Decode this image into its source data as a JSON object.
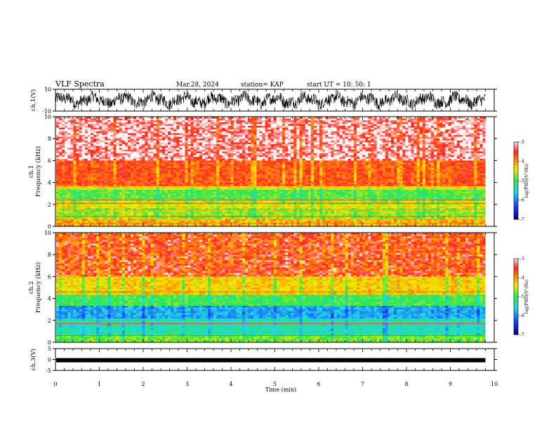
{
  "header": {
    "title": "VLF Spectra",
    "date": "Mar.28, 2024",
    "station": "station= KAP",
    "start_ut": "start  UT =   10: 50: 1"
  },
  "colors": {
    "background": "#ffffff",
    "axes": "#000000",
    "waveform": "#000000",
    "colorbar_stops": [
      "#ffffff",
      "#ff2a1e",
      "#ffe600",
      "#2ee84a",
      "#1fd9e6",
      "#1e40ff",
      "#000080"
    ]
  },
  "chart_data": [
    {
      "type": "line",
      "name": "ch1-waveform",
      "ylabel": "ch.1(V)",
      "ylim": [
        -10,
        10
      ],
      "y_ticks": [
        "10",
        "-10"
      ],
      "x_range_min": [
        0,
        9.8
      ],
      "description_values": "dense noise oscillating roughly between -8 and 8 V"
    },
    {
      "type": "heatmap",
      "name": "ch1-spectrogram",
      "ylabel_line1": "ch.1",
      "ylabel_line2": "Frequency (kHz)",
      "ylim": [
        0,
        10
      ],
      "y_ticks": [
        "0",
        "2",
        "4",
        "6",
        "8",
        "10"
      ],
      "x_range_min": [
        0,
        9.8
      ],
      "bands": [
        {
          "from": 0.0,
          "to": 0.6,
          "level": -4.1
        },
        {
          "from": 0.6,
          "to": 1.6,
          "level": -4.7
        },
        {
          "from": 1.6,
          "to": 2.0,
          "level": -4.4
        },
        {
          "from": 2.0,
          "to": 2.4,
          "level": -4.6
        },
        {
          "from": 2.4,
          "to": 3.3,
          "level": -4.9
        },
        {
          "from": 3.3,
          "to": 3.6,
          "level": -4.4
        },
        {
          "from": 3.6,
          "to": 6.0,
          "level": -3.7
        },
        {
          "from": 6.0,
          "to": 10.0,
          "level": -3.3
        }
      ],
      "colorbar": {
        "label": "log(PSD)(V²/Hz)",
        "ticks": [
          "-3",
          "-4",
          "-5",
          "-6",
          "-7"
        ],
        "range": [
          -7,
          -3
        ]
      }
    },
    {
      "type": "heatmap",
      "name": "ch2-spectrogram",
      "ylabel_line1": "ch.2",
      "ylabel_line2": "Frequency (kHz)",
      "ylim": [
        0,
        10
      ],
      "y_ticks": [
        "0",
        "2",
        "4",
        "6",
        "8",
        "10"
      ],
      "x_range_min": [
        0,
        9.8
      ],
      "bands": [
        {
          "from": 0.0,
          "to": 0.6,
          "level": -4.8
        },
        {
          "from": 0.6,
          "to": 2.2,
          "level": -5.4
        },
        {
          "from": 2.2,
          "to": 3.4,
          "level": -5.8
        },
        {
          "from": 3.4,
          "to": 4.4,
          "level": -5.0
        },
        {
          "from": 4.4,
          "to": 6.0,
          "level": -4.3
        },
        {
          "from": 6.0,
          "to": 10.0,
          "level": -3.8
        }
      ],
      "colorbar": {
        "label": "log(PSD)(V²/Hz)",
        "ticks": [
          "-3",
          "-4",
          "-5",
          "-6",
          "-7"
        ],
        "range": [
          -7,
          -3
        ]
      }
    },
    {
      "type": "line",
      "name": "ch3-waveform",
      "ylabel": "ch.3(V)",
      "ylim": [
        -5,
        5
      ],
      "y_ticks": [
        "5",
        "0",
        "-5"
      ],
      "x_range_min": [
        0,
        9.8
      ],
      "level_v": -0.3
    }
  ],
  "x_axis": {
    "label": "Time  (min)",
    "ticks": [
      "0",
      "1",
      "2",
      "3",
      "4",
      "5",
      "6",
      "7",
      "8",
      "9",
      "10"
    ],
    "range": [
      0,
      10
    ]
  }
}
